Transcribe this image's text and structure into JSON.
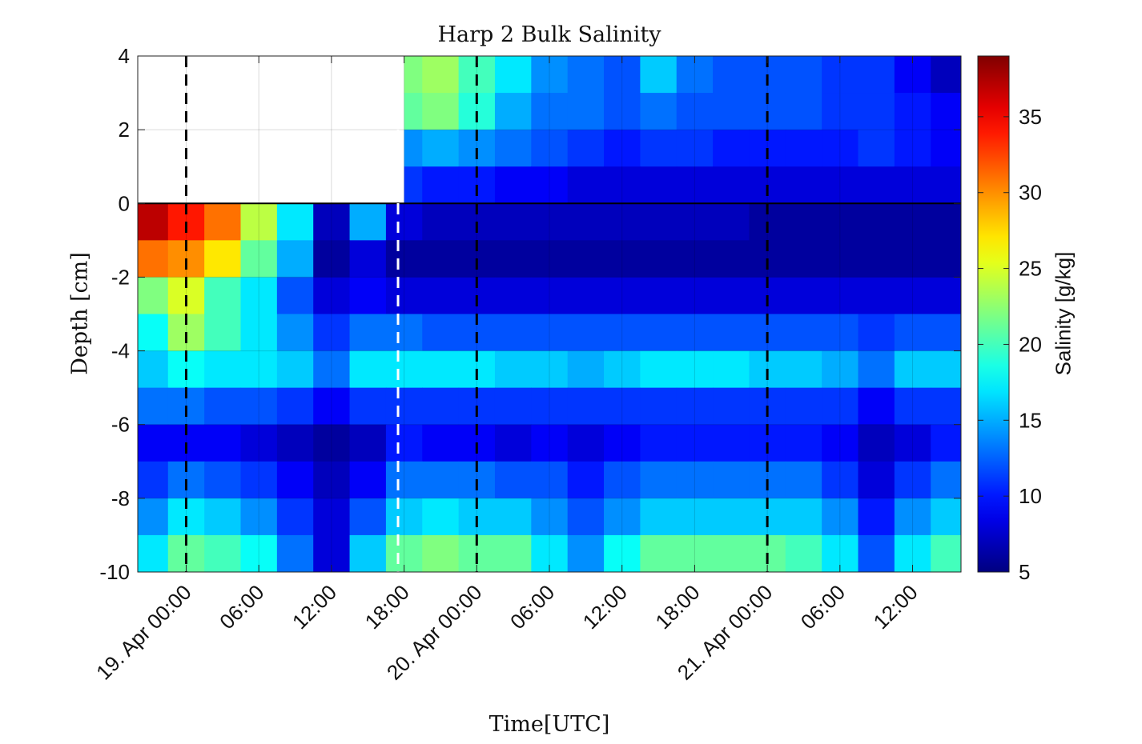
{
  "chart_data": {
    "type": "heatmap",
    "title": "Harp 2 Bulk Salinity",
    "xlabel": "Time[UTC]",
    "ylabel": "Depth [cm]",
    "colorbar_label": "Salinity [g/kg]",
    "colormap": "jet",
    "x_range": [
      "2023-04-18T20:00",
      "2023-04-21T16:00"
    ],
    "ylim": [
      -10,
      4
    ],
    "clim": [
      5,
      39
    ],
    "x_ticks": [
      {
        "t": "2023-04-19T00:00",
        "label": "19. Apr 00:00"
      },
      {
        "t": "2023-04-19T06:00",
        "label": "06:00"
      },
      {
        "t": "2023-04-19T12:00",
        "label": "12:00"
      },
      {
        "t": "2023-04-19T18:00",
        "label": "18:00"
      },
      {
        "t": "2023-04-20T00:00",
        "label": "20. Apr 00:00"
      },
      {
        "t": "2023-04-20T06:00",
        "label": "06:00"
      },
      {
        "t": "2023-04-20T12:00",
        "label": "12:00"
      },
      {
        "t": "2023-04-20T18:00",
        "label": "18:00"
      },
      {
        "t": "2023-04-21T00:00",
        "label": "21. Apr 00:00"
      },
      {
        "t": "2023-04-21T06:00",
        "label": "06:00"
      },
      {
        "t": "2023-04-21T12:00",
        "label": "12:00"
      }
    ],
    "y_ticks": [
      "4",
      "2",
      "0",
      "-2",
      "-4",
      "-6",
      "-8",
      "-10"
    ],
    "colorbar_ticks": [
      "35",
      "30",
      "25",
      "20",
      "15",
      "10",
      "5"
    ],
    "grid": true,
    "surface_line_depth": 0,
    "vertical_markers": [
      {
        "t": "2023-04-19T00:00",
        "style": "dashed",
        "color": "#000000"
      },
      {
        "t": "2023-04-19T17:30",
        "style": "dashed",
        "color": "#ffffff"
      },
      {
        "t": "2023-04-20T00:00",
        "style": "dashed",
        "color": "#000000"
      },
      {
        "t": "2023-04-21T00:00",
        "style": "dashed",
        "color": "#000000"
      }
    ],
    "surface_appearance_time": "2023-04-19T18:00",
    "time_bins": [
      "2023-04-18T21:00",
      "2023-04-19T00:00",
      "2023-04-19T03:00",
      "2023-04-19T06:00",
      "2023-04-19T09:00",
      "2023-04-19T12:00",
      "2023-04-19T15:00",
      "2023-04-19T18:00",
      "2023-04-19T21:00",
      "2023-04-20T00:00",
      "2023-04-20T03:00",
      "2023-04-20T06:00",
      "2023-04-20T09:00",
      "2023-04-20T12:00",
      "2023-04-20T15:00",
      "2023-04-20T18:00",
      "2023-04-20T21:00",
      "2023-04-21T00:00",
      "2023-04-21T03:00",
      "2023-04-21T06:00",
      "2023-04-21T09:00",
      "2023-04-21T12:00",
      "2023-04-21T15:00"
    ],
    "depth_bins": [
      3.5,
      2.5,
      1.5,
      0.5,
      -0.5,
      -1.5,
      -2.5,
      -3.5,
      -4.5,
      -5.5,
      -6.5,
      -7.5,
      -8.5,
      -9.5
    ],
    "salinity": [
      [
        null,
        null,
        null,
        null,
        null,
        null,
        null,
        22,
        23,
        20,
        17,
        14,
        13,
        12,
        16,
        13,
        12,
        12,
        12,
        11,
        11,
        9,
        7
      ],
      [
        null,
        null,
        null,
        null,
        null,
        null,
        null,
        21,
        22,
        19,
        15,
        13,
        13,
        12,
        13,
        12,
        12,
        12,
        12,
        11,
        11,
        10,
        9
      ],
      [
        null,
        null,
        null,
        null,
        null,
        null,
        null,
        14,
        15,
        14,
        13,
        12,
        11,
        10,
        11,
        11,
        10,
        10,
        10,
        10,
        11,
        10,
        9
      ],
      [
        null,
        null,
        null,
        null,
        null,
        null,
        null,
        11,
        10,
        10,
        9,
        9,
        8,
        8,
        8,
        8,
        8,
        8,
        8,
        8,
        8,
        8,
        8
      ],
      [
        37,
        34,
        31,
        24,
        17,
        7,
        15,
        8,
        7,
        7,
        7,
        7,
        7,
        7,
        7,
        7,
        7,
        6,
        6,
        6,
        6,
        6,
        6
      ],
      [
        31,
        30,
        27,
        21,
        15,
        6,
        8,
        6,
        6,
        6,
        6,
        6,
        6,
        6,
        6,
        6,
        6,
        6,
        6,
        6,
        6,
        6,
        6
      ],
      [
        22,
        25,
        20,
        17,
        12,
        8,
        9,
        8,
        8,
        8,
        8,
        8,
        8,
        8,
        8,
        8,
        8,
        8,
        8,
        8,
        8,
        8,
        8
      ],
      [
        18,
        23,
        20,
        17,
        14,
        11,
        13,
        13,
        12,
        12,
        12,
        12,
        12,
        12,
        12,
        12,
        12,
        12,
        12,
        12,
        11,
        12,
        12
      ],
      [
        16,
        18,
        17,
        17,
        16,
        13,
        17,
        17,
        17,
        17,
        16,
        16,
        15,
        16,
        17,
        17,
        17,
        16,
        16,
        15,
        13,
        16,
        16
      ],
      [
        13,
        13,
        12,
        12,
        11,
        9,
        11,
        11,
        11,
        11,
        11,
        11,
        11,
        11,
        11,
        11,
        11,
        11,
        11,
        11,
        9,
        11,
        11
      ],
      [
        9,
        9,
        9,
        8,
        7,
        6,
        7,
        10,
        9,
        9,
        8,
        9,
        8,
        9,
        10,
        10,
        10,
        10,
        10,
        9,
        7,
        8,
        10
      ],
      [
        11,
        13,
        12,
        11,
        9,
        7,
        9,
        13,
        13,
        13,
        12,
        12,
        10,
        12,
        13,
        13,
        13,
        13,
        13,
        11,
        8,
        11,
        13
      ],
      [
        14,
        17,
        16,
        14,
        11,
        8,
        12,
        16,
        17,
        16,
        16,
        14,
        12,
        14,
        16,
        16,
        16,
        16,
        16,
        14,
        10,
        14,
        16
      ],
      [
        17,
        21,
        20,
        18,
        13,
        8,
        16,
        21,
        22,
        21,
        21,
        17,
        14,
        18,
        21,
        21,
        21,
        21,
        20,
        17,
        12,
        17,
        20
      ]
    ]
  }
}
